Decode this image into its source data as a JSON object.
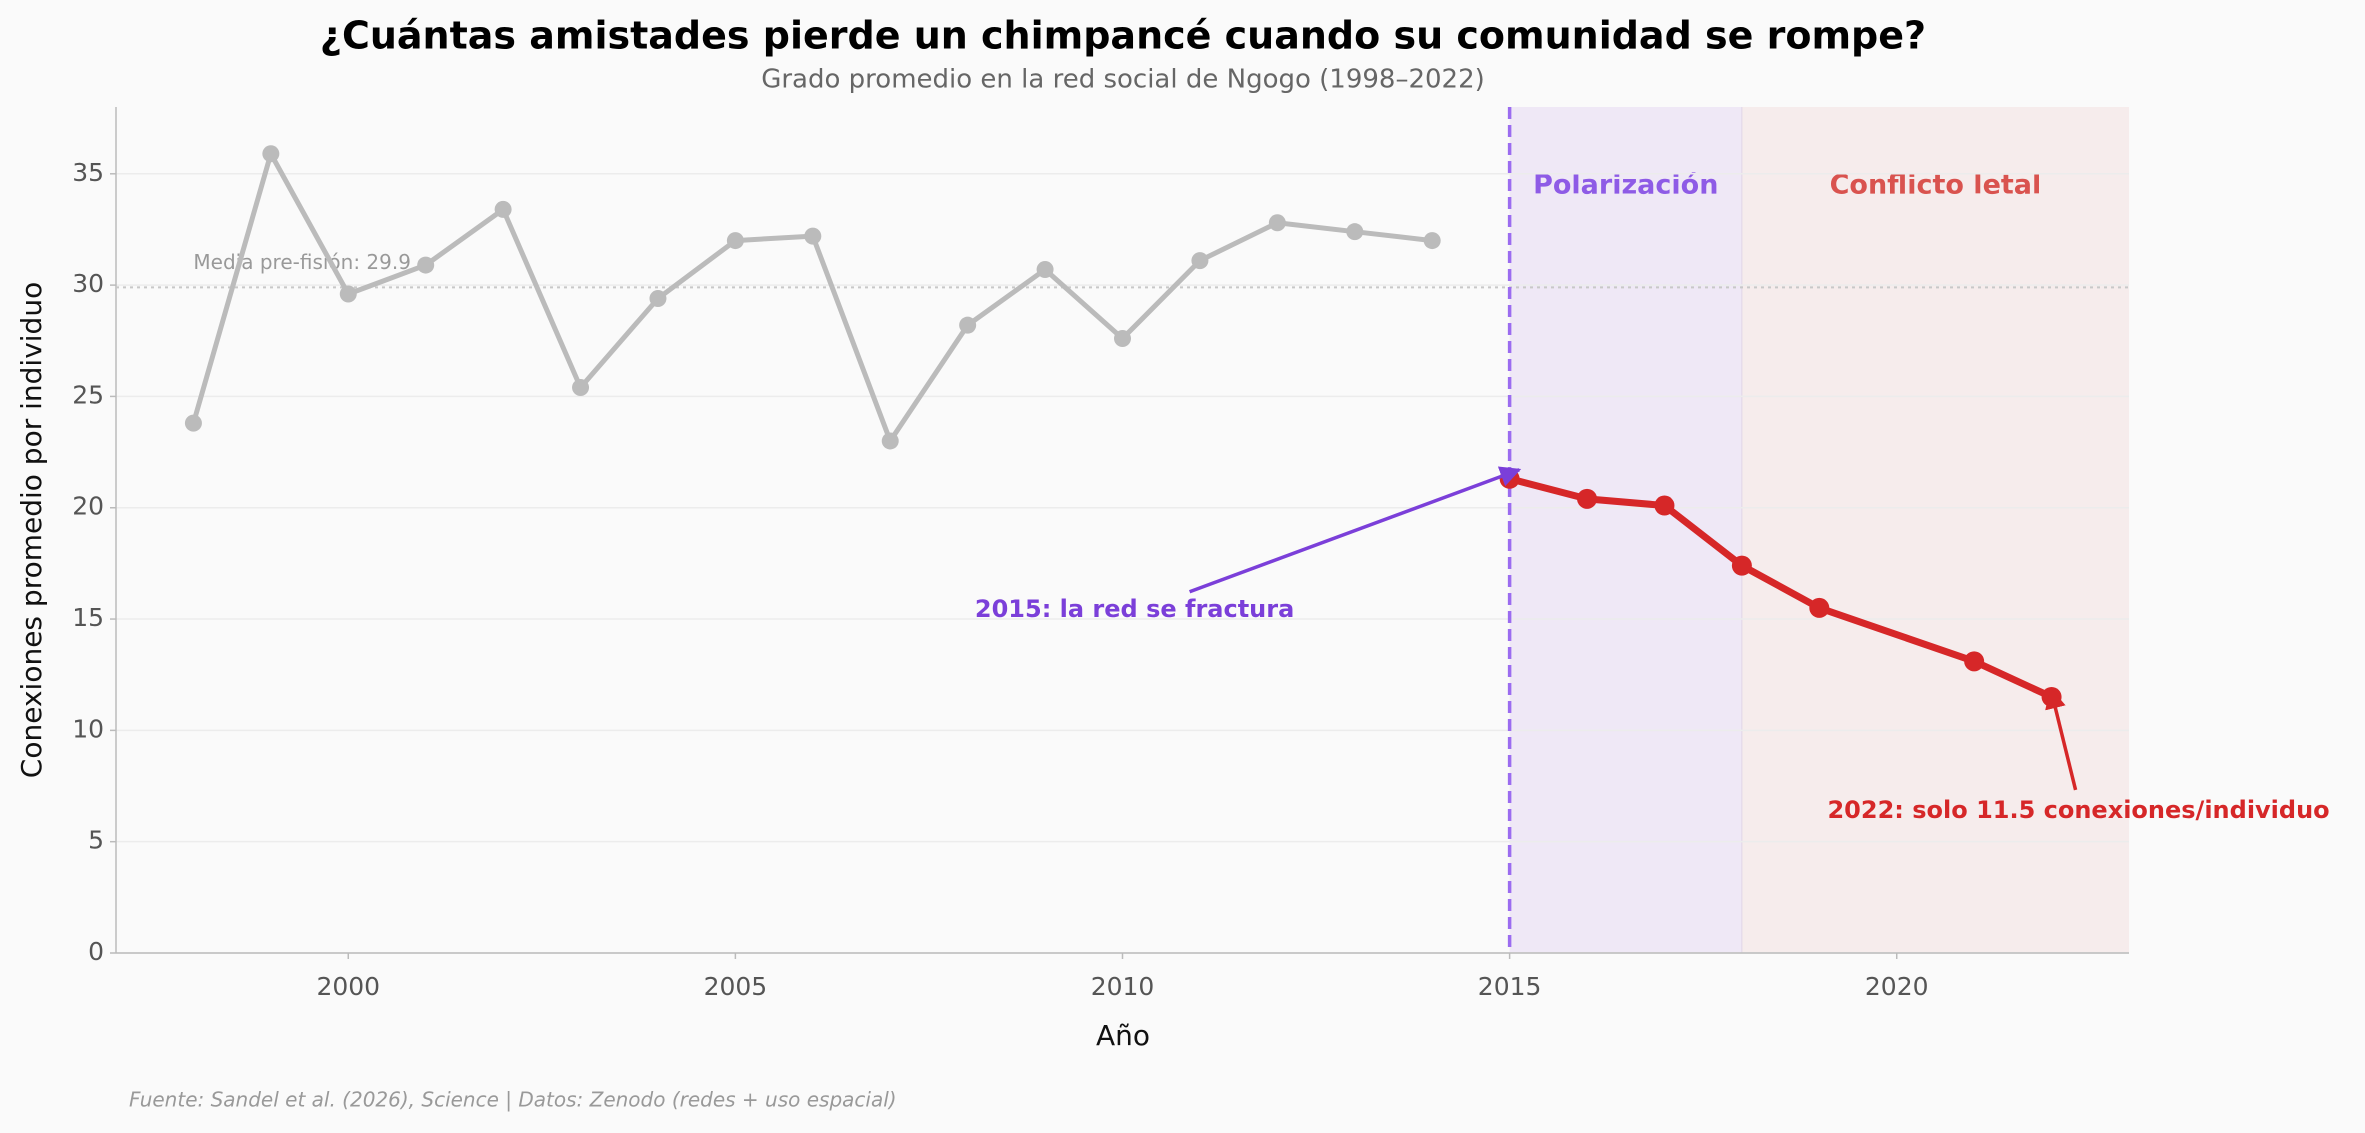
{
  "chart_data": {
    "type": "line",
    "title": "¿Cuántas amistades pierde un chimpancé cuando su comunidad se rompe?",
    "subtitle": "Grado promedio en la red social de Ngogo (1998–2022)",
    "x_label": "Año",
    "y_label": "Conexiones promedio por individuo",
    "footer": "Fuente: Sandel et al. (2026), Science | Datos: Zenodo (redes + uso espacial)",
    "xlim": [
      1997,
      2023
    ],
    "xticks": [
      2000,
      2005,
      2010,
      2015,
      2020
    ],
    "ylim": [
      0,
      38
    ],
    "yticks": [
      0,
      5,
      10,
      15,
      20,
      25,
      30,
      35
    ],
    "grid": true,
    "series": [
      {
        "color": "#bbbbbb",
        "x": [
          1998,
          1999,
          2000,
          2001,
          2002,
          2003,
          2004,
          2005,
          2006,
          2007,
          2008,
          2009,
          2010,
          2011,
          2012,
          2013,
          2014
        ],
        "values": [
          23.8,
          35.9,
          29.6,
          30.9,
          33.4,
          25.4,
          29.4,
          32.0,
          32.2,
          23.0,
          28.2,
          30.7,
          27.6,
          31.1,
          32.8,
          32.4,
          32.0
        ]
      },
      {
        "color": "#d62728",
        "x": [
          2015,
          2016,
          2017,
          2018,
          2019,
          2021,
          2022
        ],
        "values": [
          21.3,
          20.4,
          20.1,
          17.4,
          15.5,
          13.1,
          11.5
        ]
      }
    ],
    "mean_line": {
      "value": 29.9,
      "label": "Media pre-fisión: 29.9"
    },
    "regions": [
      {
        "label": "Polarización",
        "start": 2015,
        "end": 2018,
        "color": "#efe8f6",
        "label_color": "#8e5be6"
      },
      {
        "label": "Conflicto letal",
        "start": 2018,
        "end": 2023,
        "color": "#f6ecec",
        "label_color": "#d9534f"
      }
    ],
    "vline": {
      "x": 2015,
      "color": "#9b6cf0"
    },
    "annotations": [
      {
        "text": "2015: la red se fractura",
        "color": "#7b3fd9"
      },
      {
        "text": "2022: solo 11.5 conexiones/individuo",
        "color": "#d62728"
      }
    ]
  }
}
